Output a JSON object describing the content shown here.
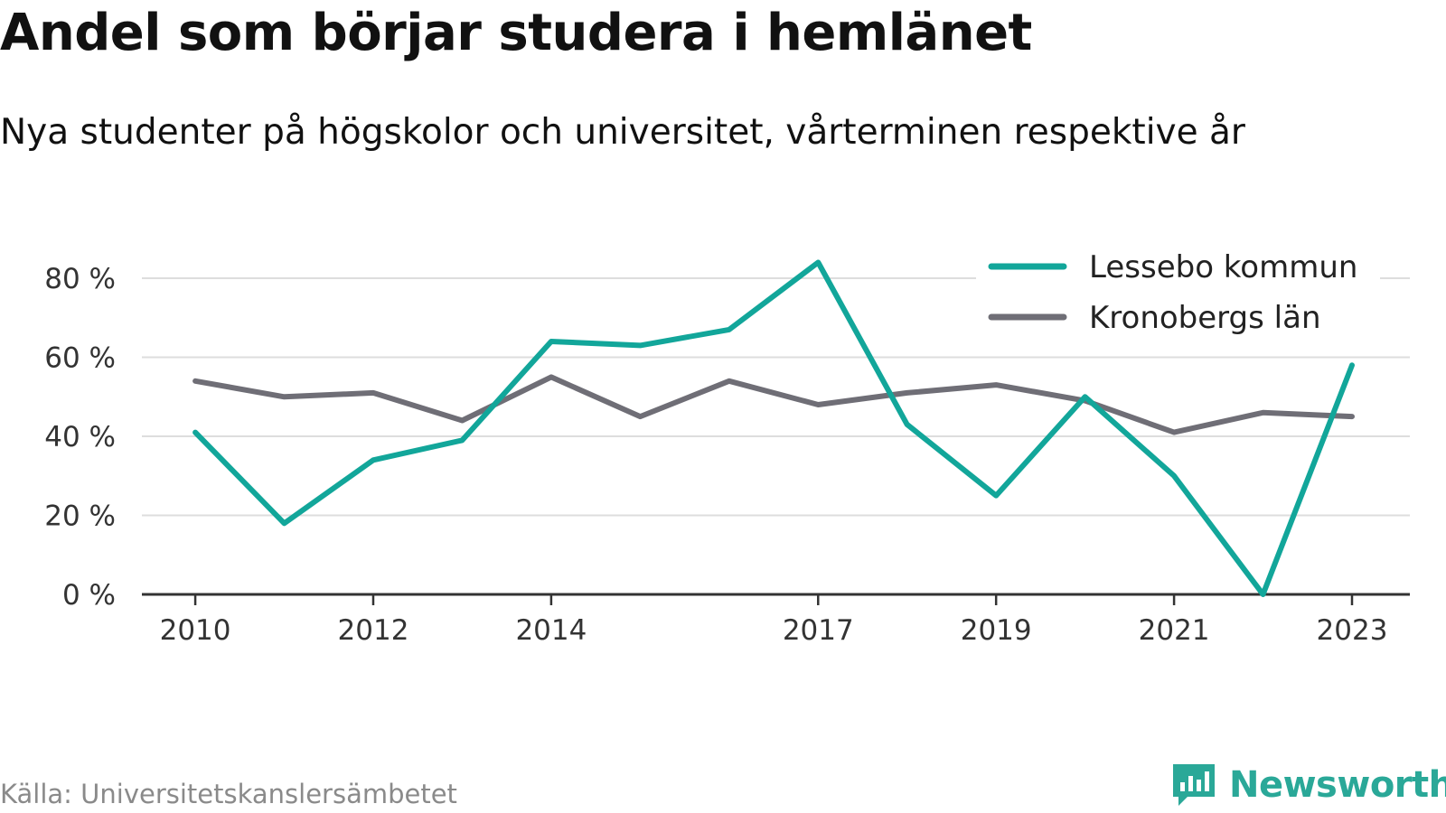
{
  "title": "Andel som börjar studera i hemlänet",
  "subtitle": "Nya studenter på högskolor och universitet, vårterminen respektive år",
  "source": "Källa: Universitetskanslersämbetet",
  "brand": {
    "name": "Newsworthy",
    "icon": "newsworthy-bar-chart-icon",
    "color": "#2aa898"
  },
  "chart_data": {
    "type": "line",
    "x": [
      2010,
      2011,
      2012,
      2013,
      2014,
      2015,
      2016,
      2017,
      2018,
      2019,
      2020,
      2021,
      2022,
      2023
    ],
    "x_ticks": [
      2010,
      2012,
      2014,
      2017,
      2019,
      2021,
      2023
    ],
    "x_tick_labels": [
      "2010",
      "2012",
      "2014",
      "2017",
      "2019",
      "2021",
      "2023"
    ],
    "y_ticks": [
      0,
      20,
      40,
      60,
      80
    ],
    "y_tick_labels": [
      "0 %",
      "20 %",
      "40 %",
      "60 %",
      "80 %"
    ],
    "ylim": [
      0,
      80
    ],
    "xlim": [
      2009.4,
      2023.65
    ],
    "grid": true,
    "legend_position": "top-right",
    "series": [
      {
        "name": "Lessebo kommun",
        "color": "#12a69a",
        "values": [
          41,
          18,
          34,
          39,
          64,
          63,
          67,
          84,
          43,
          25,
          50,
          30,
          0,
          58
        ]
      },
      {
        "name": "Kronobergs län",
        "color": "#6f6e76",
        "values": [
          54,
          50,
          51,
          44,
          55,
          45,
          54,
          48,
          51,
          53,
          49,
          41,
          46,
          45
        ]
      }
    ]
  }
}
